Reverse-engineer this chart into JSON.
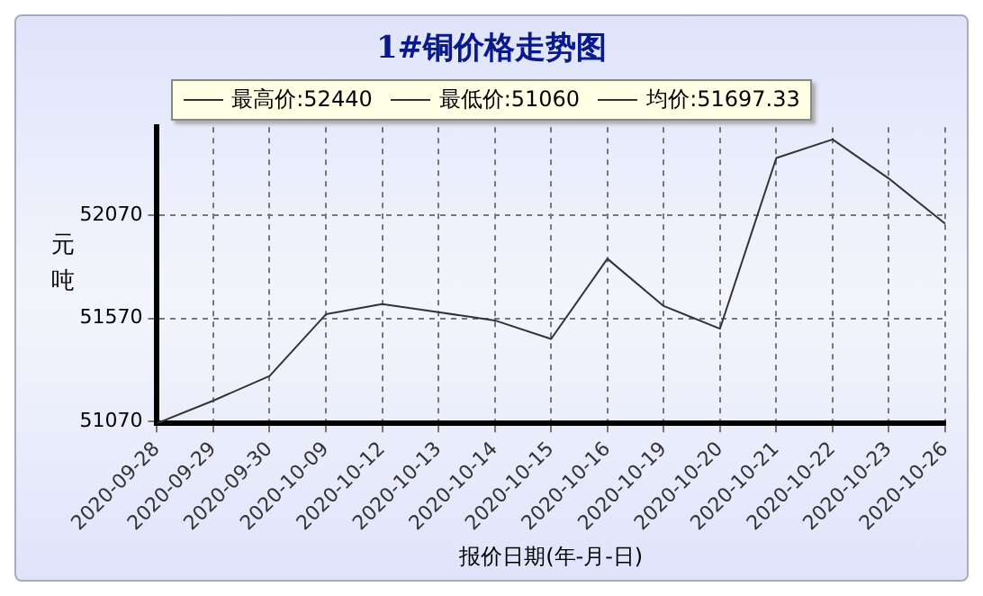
{
  "chart_data": {
    "type": "line",
    "title": "1#铜价格走势图",
    "annotations": [
      "最高价:52440",
      "最低价:51060",
      "均价:51697.33"
    ],
    "xlabel": "报价日期(年-月-日)",
    "ylabel": "元吨",
    "categories": [
      "2020-09-28",
      "2020-09-29",
      "2020-09-30",
      "2020-10-09",
      "2020-10-12",
      "2020-10-13",
      "2020-10-14",
      "2020-10-15",
      "2020-10-16",
      "2020-10-19",
      "2020-10-20",
      "2020-10-21",
      "2020-10-22",
      "2020-10-23",
      "2020-10-26"
    ],
    "series": [
      {
        "color": "#333333",
        "values": [
          51060,
          51170,
          51290,
          51590,
          51640,
          51600,
          51560,
          51470,
          51860,
          51630,
          51520,
          52350,
          52440,
          52250,
          52030
        ]
      }
    ],
    "ylim": [
      51060,
      52500
    ],
    "yticks": [
      51070,
      51570,
      52070
    ],
    "grid": true,
    "marker": "none",
    "line_style": "solid",
    "legend": false
  }
}
